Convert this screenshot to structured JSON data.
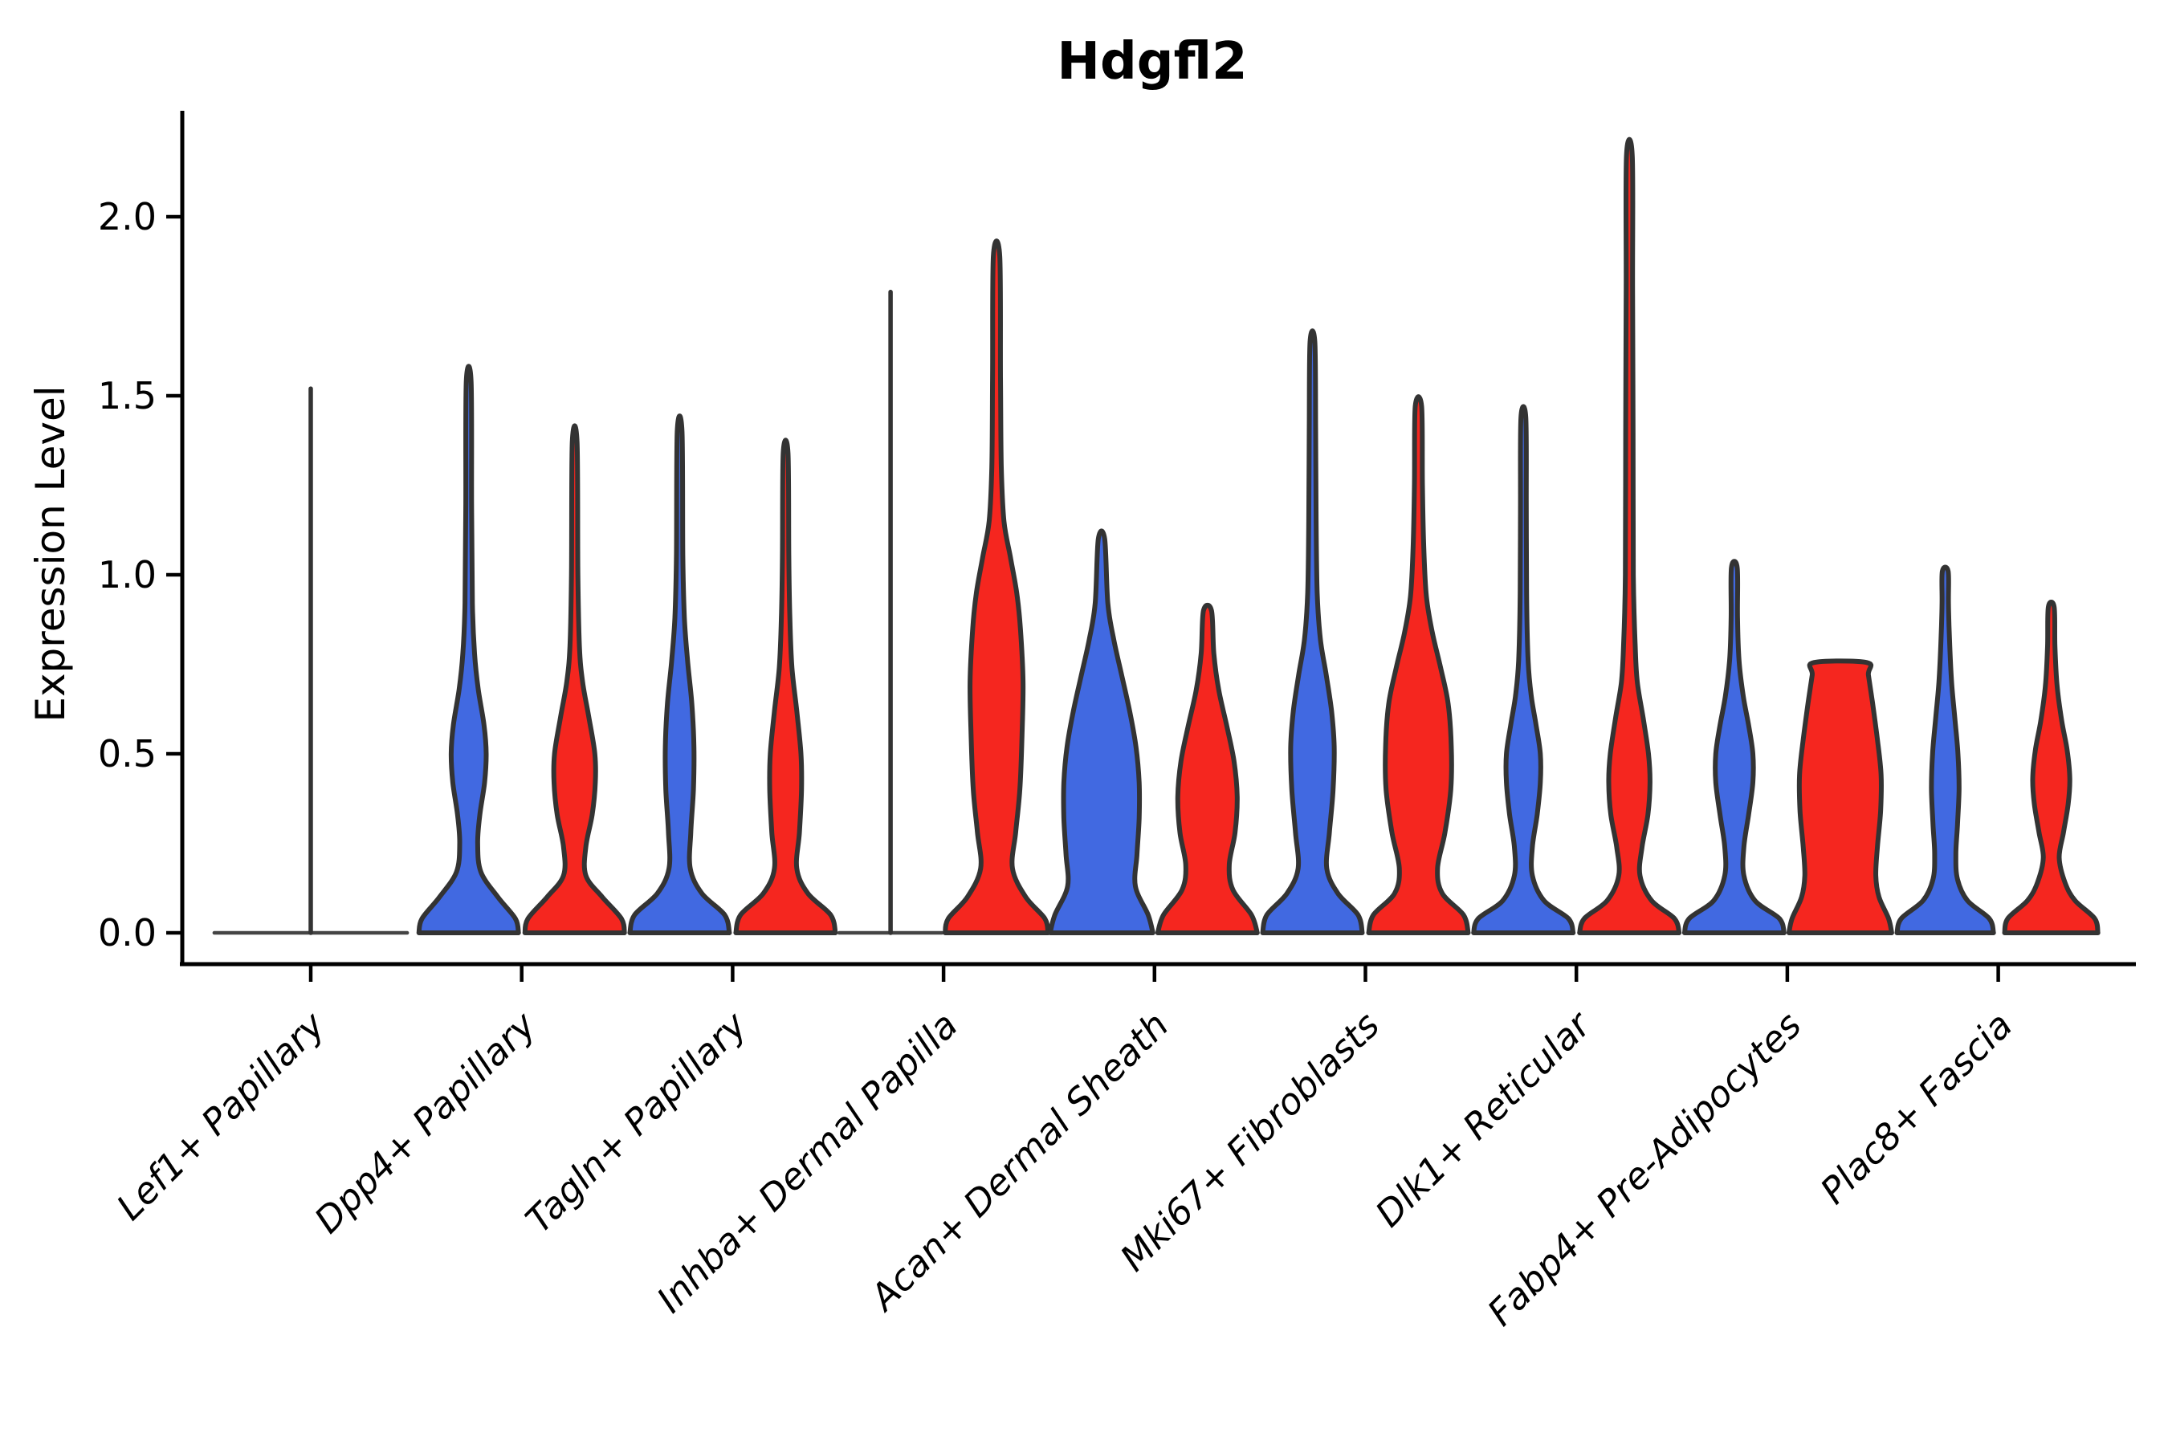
{
  "chart_data": {
    "type": "violin",
    "title": "Hdgfl2",
    "xlabel": "",
    "ylabel": "Expression Level",
    "yticks": [
      0.0,
      0.5,
      1.0,
      1.5,
      2.0
    ],
    "ytick_labels": [
      "0.0",
      "0.5",
      "1.0",
      "1.5",
      "2.0"
    ],
    "ylim": [
      -0.09,
      2.29
    ],
    "grid": false,
    "legend_position": "none",
    "colors": {
      "blue_series": "#4169E1",
      "red_series": "#F5261F",
      "outline": "#333333",
      "axis": "#000000"
    },
    "categories": [
      "Lef1+ Papillary",
      "Dpp4+ Papillary",
      "Tagln+ Papillary",
      "Inhba+ Dermal Papilla",
      "Acan+ Dermal Sheath",
      "Mki67+ Fibroblasts",
      "Dlk1+ Reticular",
      "Fabp4+ Pre-Adipocytes",
      "Plac8+ Fascia"
    ],
    "violins": [
      {
        "category": "Lef1+ Papillary",
        "blue": {
          "max": 1.52,
          "degenerate_spike": true,
          "centered": true,
          "base_halfwidth": 1.82
        },
        "red": null
      },
      {
        "category": "Dpp4+ Papillary",
        "blue": {
          "max": 1.54,
          "profile": [
            [
              0,
              0.94
            ],
            [
              0.04,
              0.88
            ],
            [
              0.1,
              0.55
            ],
            [
              0.17,
              0.23
            ],
            [
              0.25,
              0.17
            ],
            [
              0.33,
              0.21
            ],
            [
              0.42,
              0.3
            ],
            [
              0.5,
              0.33
            ],
            [
              0.58,
              0.29
            ],
            [
              0.68,
              0.18
            ],
            [
              0.78,
              0.11
            ],
            [
              0.92,
              0.07
            ],
            [
              1.2,
              0.055
            ],
            [
              1.54,
              0.045
            ]
          ]
        },
        "red": {
          "max": 1.37,
          "profile": [
            [
              0,
              0.94
            ],
            [
              0.04,
              0.88
            ],
            [
              0.1,
              0.52
            ],
            [
              0.16,
              0.21
            ],
            [
              0.24,
              0.21
            ],
            [
              0.33,
              0.33
            ],
            [
              0.42,
              0.39
            ],
            [
              0.5,
              0.38
            ],
            [
              0.6,
              0.27
            ],
            [
              0.7,
              0.15
            ],
            [
              0.8,
              0.09
            ],
            [
              1.0,
              0.06
            ],
            [
              1.37,
              0.045
            ]
          ]
        }
      },
      {
        "category": "Tagln+ Papillary",
        "blue": {
          "max": 1.4,
          "profile": [
            [
              0,
              0.94
            ],
            [
              0.05,
              0.85
            ],
            [
              0.11,
              0.42
            ],
            [
              0.18,
              0.2
            ],
            [
              0.28,
              0.21
            ],
            [
              0.4,
              0.26
            ],
            [
              0.52,
              0.27
            ],
            [
              0.64,
              0.23
            ],
            [
              0.76,
              0.15
            ],
            [
              0.88,
              0.09
            ],
            [
              1.05,
              0.06
            ],
            [
              1.4,
              0.045
            ]
          ]
        },
        "red": {
          "max": 1.34,
          "profile": [
            [
              0,
              0.94
            ],
            [
              0.05,
              0.85
            ],
            [
              0.11,
              0.42
            ],
            [
              0.18,
              0.21
            ],
            [
              0.28,
              0.26
            ],
            [
              0.4,
              0.3
            ],
            [
              0.5,
              0.29
            ],
            [
              0.62,
              0.21
            ],
            [
              0.74,
              0.12
            ],
            [
              0.88,
              0.08
            ],
            [
              1.05,
              0.06
            ],
            [
              1.34,
              0.045
            ]
          ]
        }
      },
      {
        "category": "Inhba+ Dermal Papilla",
        "blue": {
          "max": 1.79,
          "degenerate_spike": true,
          "centered": false,
          "base_halfwidth": 0.97
        },
        "red": {
          "max": 1.89,
          "profile": [
            [
              0,
              0.97
            ],
            [
              0.04,
              0.91
            ],
            [
              0.1,
              0.55
            ],
            [
              0.18,
              0.3
            ],
            [
              0.28,
              0.36
            ],
            [
              0.4,
              0.44
            ],
            [
              0.55,
              0.48
            ],
            [
              0.7,
              0.5
            ],
            [
              0.85,
              0.45
            ],
            [
              0.95,
              0.38
            ],
            [
              1.05,
              0.26
            ],
            [
              1.15,
              0.14
            ],
            [
              1.3,
              0.09
            ],
            [
              1.55,
              0.075
            ],
            [
              1.89,
              0.06
            ]
          ]
        }
      },
      {
        "category": "Acan+ Dermal Sheath",
        "blue": {
          "max": 1.1,
          "profile": [
            [
              0,
              0.97
            ],
            [
              0.05,
              0.88
            ],
            [
              0.13,
              0.64
            ],
            [
              0.22,
              0.67
            ],
            [
              0.32,
              0.71
            ],
            [
              0.42,
              0.71
            ],
            [
              0.52,
              0.65
            ],
            [
              0.62,
              0.53
            ],
            [
              0.72,
              0.38
            ],
            [
              0.82,
              0.23
            ],
            [
              0.92,
              0.12
            ],
            [
              1.1,
              0.06
            ]
          ]
        },
        "red": {
          "max": 0.9,
          "profile": [
            [
              0,
              0.94
            ],
            [
              0.05,
              0.83
            ],
            [
              0.12,
              0.48
            ],
            [
              0.19,
              0.41
            ],
            [
              0.28,
              0.52
            ],
            [
              0.38,
              0.56
            ],
            [
              0.48,
              0.5
            ],
            [
              0.58,
              0.36
            ],
            [
              0.68,
              0.21
            ],
            [
              0.78,
              0.12
            ],
            [
              0.9,
              0.075
            ]
          ]
        }
      },
      {
        "category": "Mki67+ Fibroblasts",
        "blue": {
          "max": 1.65,
          "profile": [
            [
              0,
              0.94
            ],
            [
              0.05,
              0.86
            ],
            [
              0.11,
              0.48
            ],
            [
              0.18,
              0.27
            ],
            [
              0.28,
              0.32
            ],
            [
              0.4,
              0.39
            ],
            [
              0.52,
              0.41
            ],
            [
              0.62,
              0.36
            ],
            [
              0.72,
              0.26
            ],
            [
              0.82,
              0.15
            ],
            [
              0.95,
              0.09
            ],
            [
              1.15,
              0.07
            ],
            [
              1.4,
              0.06
            ],
            [
              1.65,
              0.045
            ]
          ]
        },
        "red": {
          "max": 1.47,
          "profile": [
            [
              0,
              0.94
            ],
            [
              0.05,
              0.85
            ],
            [
              0.11,
              0.45
            ],
            [
              0.18,
              0.36
            ],
            [
              0.28,
              0.5
            ],
            [
              0.4,
              0.61
            ],
            [
              0.52,
              0.62
            ],
            [
              0.64,
              0.56
            ],
            [
              0.74,
              0.42
            ],
            [
              0.84,
              0.26
            ],
            [
              0.94,
              0.15
            ],
            [
              1.08,
              0.1
            ],
            [
              1.25,
              0.075
            ],
            [
              1.47,
              0.06
            ]
          ]
        }
      },
      {
        "category": "Dlk1+ Reticular",
        "blue": {
          "max": 1.44,
          "profile": [
            [
              0,
              0.94
            ],
            [
              0.04,
              0.85
            ],
            [
              0.09,
              0.39
            ],
            [
              0.16,
              0.17
            ],
            [
              0.24,
              0.17
            ],
            [
              0.33,
              0.26
            ],
            [
              0.42,
              0.32
            ],
            [
              0.5,
              0.32
            ],
            [
              0.58,
              0.24
            ],
            [
              0.66,
              0.15
            ],
            [
              0.76,
              0.09
            ],
            [
              0.95,
              0.06
            ],
            [
              1.2,
              0.055
            ],
            [
              1.44,
              0.045
            ]
          ]
        },
        "red": {
          "max": 2.17,
          "profile": [
            [
              0,
              0.94
            ],
            [
              0.04,
              0.85
            ],
            [
              0.09,
              0.42
            ],
            [
              0.16,
              0.2
            ],
            [
              0.24,
              0.24
            ],
            [
              0.33,
              0.35
            ],
            [
              0.42,
              0.39
            ],
            [
              0.5,
              0.36
            ],
            [
              0.6,
              0.26
            ],
            [
              0.7,
              0.15
            ],
            [
              0.8,
              0.11
            ],
            [
              1.0,
              0.075
            ],
            [
              1.4,
              0.07
            ],
            [
              1.8,
              0.06
            ],
            [
              2.17,
              0.055
            ]
          ]
        }
      },
      {
        "category": "Fabp4+ Pre-Adipocytes",
        "blue": {
          "max": 1.02,
          "profile": [
            [
              0,
              0.94
            ],
            [
              0.04,
              0.85
            ],
            [
              0.09,
              0.39
            ],
            [
              0.16,
              0.18
            ],
            [
              0.24,
              0.18
            ],
            [
              0.33,
              0.27
            ],
            [
              0.42,
              0.35
            ],
            [
              0.5,
              0.35
            ],
            [
              0.58,
              0.27
            ],
            [
              0.66,
              0.17
            ],
            [
              0.76,
              0.09
            ],
            [
              0.88,
              0.06
            ],
            [
              1.02,
              0.055
            ]
          ]
        },
        "red": {
          "max": 0.76,
          "flat_top": true,
          "profile": [
            [
              0,
              0.97
            ],
            [
              0.04,
              0.91
            ],
            [
              0.1,
              0.73
            ],
            [
              0.16,
              0.67
            ],
            [
              0.24,
              0.7
            ],
            [
              0.34,
              0.76
            ],
            [
              0.44,
              0.77
            ],
            [
              0.54,
              0.7
            ],
            [
              0.64,
              0.61
            ],
            [
              0.72,
              0.53
            ],
            [
              0.755,
              0.5
            ]
          ]
        }
      },
      {
        "category": "Plac8+ Fascia",
        "blue": {
          "max": 1.01,
          "profile": [
            [
              0,
              0.91
            ],
            [
              0.04,
              0.83
            ],
            [
              0.09,
              0.42
            ],
            [
              0.15,
              0.23
            ],
            [
              0.22,
              0.2
            ],
            [
              0.3,
              0.23
            ],
            [
              0.4,
              0.26
            ],
            [
              0.5,
              0.24
            ],
            [
              0.6,
              0.18
            ],
            [
              0.7,
              0.12
            ],
            [
              0.82,
              0.08
            ],
            [
              0.92,
              0.06
            ],
            [
              1.01,
              0.055
            ]
          ]
        },
        "red": {
          "max": 0.91,
          "profile": [
            [
              0,
              0.88
            ],
            [
              0.04,
              0.82
            ],
            [
              0.09,
              0.45
            ],
            [
              0.14,
              0.26
            ],
            [
              0.21,
              0.15
            ],
            [
              0.28,
              0.23
            ],
            [
              0.36,
              0.32
            ],
            [
              0.43,
              0.35
            ],
            [
              0.51,
              0.3
            ],
            [
              0.59,
              0.2
            ],
            [
              0.69,
              0.11
            ],
            [
              0.8,
              0.07
            ],
            [
              0.91,
              0.055
            ]
          ]
        }
      }
    ]
  }
}
